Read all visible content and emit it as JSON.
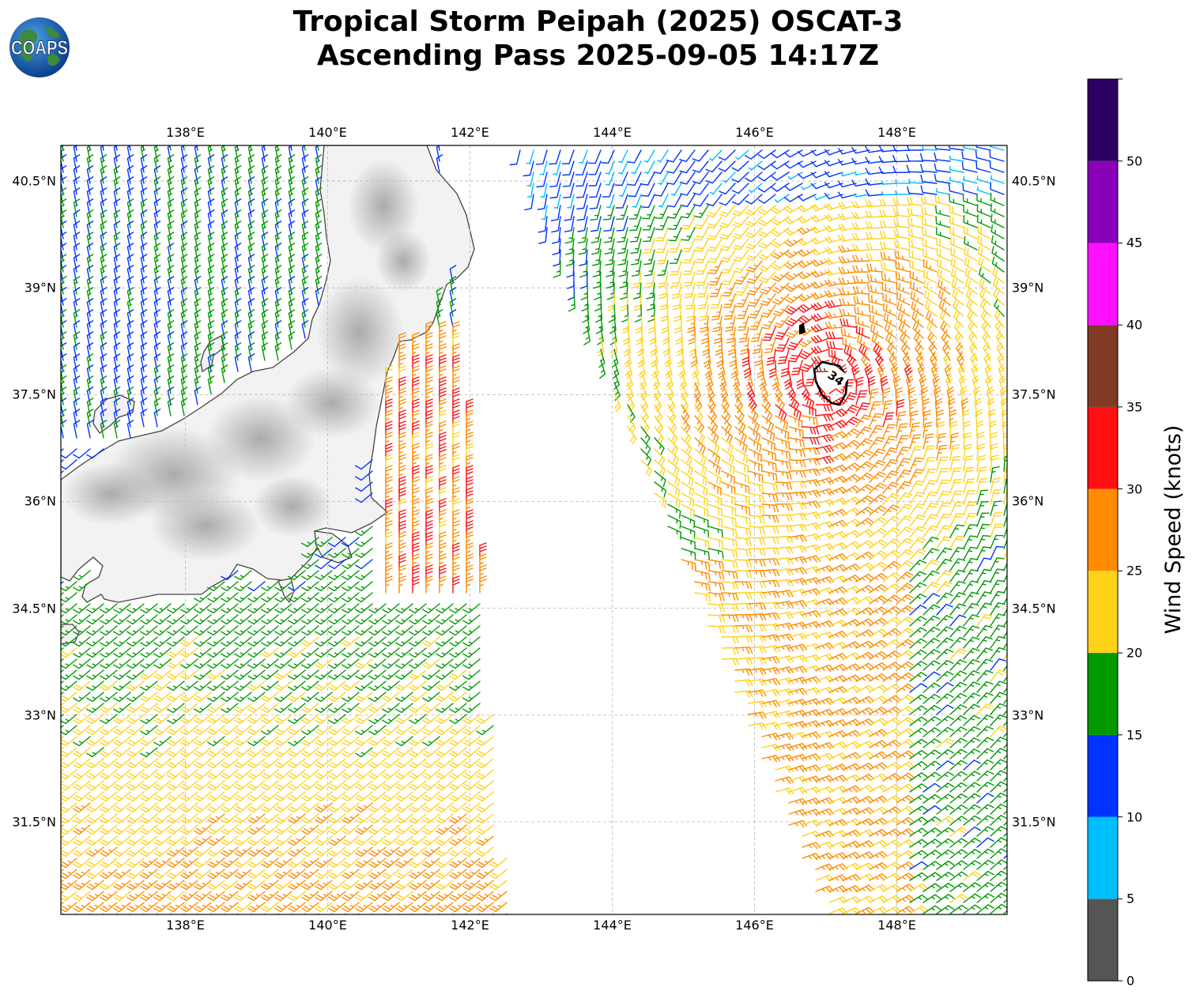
{
  "title": {
    "line1": "Tropical Storm Peipah (2025) OSCAT-3",
    "line2": "Ascending Pass 2025-09-05 14:17Z"
  },
  "logo": {
    "text": "COAPS"
  },
  "map": {
    "lon_range": [
      136.25,
      149.55
    ],
    "lat_range": [
      30.2,
      41.0
    ],
    "lon_ticks": [
      "138°E",
      "140°E",
      "142°E",
      "144°E",
      "146°E",
      "148°E"
    ],
    "lat_ticks": [
      "40.5°N",
      "39°N",
      "37.5°N",
      "36°N",
      "34.5°N",
      "33°N",
      "31.5°N"
    ],
    "contour_label": "34",
    "colors": {
      "land": "#f2f2f2",
      "coast": "#444444",
      "grid": "#bbbbbb"
    }
  },
  "colorbar": {
    "label": "Wind Speed (knots)",
    "ticks": [
      "0",
      "5",
      "10",
      "15",
      "20",
      "25",
      "30",
      "35",
      "40",
      "45",
      "50"
    ],
    "bins": [
      {
        "from": 0,
        "to": 5,
        "color": "#555555"
      },
      {
        "from": 5,
        "to": 10,
        "color": "#00bfff"
      },
      {
        "from": 10,
        "to": 15,
        "color": "#0033ff"
      },
      {
        "from": 15,
        "to": 20,
        "color": "#009900"
      },
      {
        "from": 20,
        "to": 25,
        "color": "#ffd21a"
      },
      {
        "from": 25,
        "to": 30,
        "color": "#ff8c00"
      },
      {
        "from": 30,
        "to": 35,
        "color": "#ff1010"
      },
      {
        "from": 35,
        "to": 40,
        "color": "#803a26"
      },
      {
        "from": 40,
        "to": 45,
        "color": "#ff10ff"
      },
      {
        "from": 45,
        "to": 50,
        "color": "#8800b8"
      },
      {
        "from": 50,
        "to": 55,
        "color": "#2b0060"
      }
    ]
  }
}
